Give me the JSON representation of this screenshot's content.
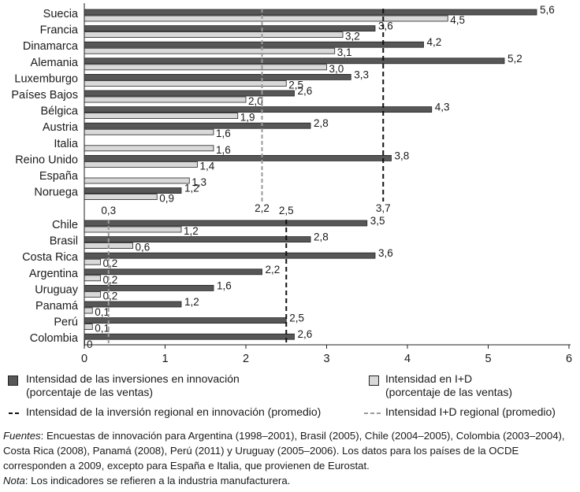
{
  "chart_data": {
    "type": "bar",
    "orientation": "horizontal",
    "categories": [
      "Suecia",
      "Francia",
      "Dinamarca",
      "Alemania",
      "Luxemburgo",
      "Países Bajos",
      "Bélgica",
      "Austria",
      "Italia",
      "Reino Unido",
      "España",
      "Noruega",
      "Chile",
      "Brasil",
      "Costa Rica",
      "Argentina",
      "Uruguay",
      "Panamá",
      "Perú",
      "Colombia"
    ],
    "series": [
      {
        "name": "Intensidad de las inversiones en innovación (porcentaje de las ventas)",
        "color": "#575757",
        "values": [
          5.6,
          3.6,
          4.2,
          5.2,
          3.3,
          2.6,
          4.3,
          2.8,
          null,
          3.8,
          null,
          1.2,
          3.5,
          2.8,
          3.6,
          2.2,
          1.6,
          1.2,
          2.5,
          2.6
        ],
        "labels": [
          "5,6",
          "3,6",
          "4,2",
          "5,2",
          "3,3",
          "2,6",
          "4,3",
          "2,8",
          "",
          "3,8",
          "",
          "1,2",
          "3,5",
          "2,8",
          "3,6",
          "2,2",
          "1,6",
          "1,2",
          "2,5",
          "2,6"
        ]
      },
      {
        "name": "Intensidad en I+D (porcentaje de las ventas)",
        "color": "#d9d9d9",
        "values": [
          4.5,
          3.2,
          3.1,
          3.0,
          2.5,
          2.0,
          1.9,
          1.6,
          1.6,
          1.4,
          1.3,
          0.9,
          1.2,
          0.6,
          0.2,
          0.2,
          0.2,
          0.1,
          0.1,
          0
        ],
        "labels": [
          "4,5",
          "3,2",
          "3,1",
          "3,0",
          "2,5",
          "2,0",
          "1,9",
          "1,6",
          "1,6",
          "1,4",
          "1,3",
          "0,9",
          "1,2",
          "0,6",
          "0,2",
          "0,2",
          "0,2",
          "0,1",
          "0,1",
          "0"
        ]
      }
    ],
    "reference_lines": [
      {
        "name": "Intensidad de la inversión regional en innovación (promedio)",
        "group": "oecd",
        "value": 3.7,
        "label": "3,7",
        "style": "dashed-black"
      },
      {
        "name": "Intensidad I+D regional (promedio)",
        "group": "oecd",
        "value": 2.2,
        "label": "2,2",
        "style": "dashed-gray"
      },
      {
        "name": "Intensidad de la inversión regional en innovación (promedio)",
        "group": "latam",
        "value": 2.5,
        "label": "2,5",
        "style": "dashed-black"
      },
      {
        "name": "Intensidad I+D regional (promedio)",
        "group": "latam",
        "value": 0.3,
        "label": "0,3",
        "style": "dashed-gray"
      }
    ],
    "xlim": [
      0,
      6
    ],
    "xticks": [
      "0",
      "1",
      "2",
      "3",
      "4",
      "5",
      "6"
    ],
    "grid": false,
    "legend_position": "bottom"
  },
  "legend": {
    "innovation_bar": "Intensidad de las inversiones en innovación",
    "innovation_bar_unit": "(porcentaje de las ventas)",
    "rd_bar": "Intensidad en I+D",
    "rd_bar_unit": "(porcentaje de las ventas)",
    "innovation_avg": "Intensidad de la inversión regional en innovación (promedio)",
    "rd_avg": "Intensidad I+D regional (promedio)"
  },
  "notes": {
    "sources_label": "Fuentes",
    "sources_text": ": Encuestas de innovación para Argentina (1998–2001), Brasil (2005), Chile (2004–2005), Colombia (2003–2004), Costa Rica (2008),  Panamá (2008), Perú (2011) y Uruguay (2005–2006). Los datos para los países de la OCDE corresponden a 2009, excepto para España e Italia, que provienen de Eurostat.",
    "note_label": "Nota",
    "note_text": ": Los indicadores se refieren a la industria manufacturera."
  }
}
